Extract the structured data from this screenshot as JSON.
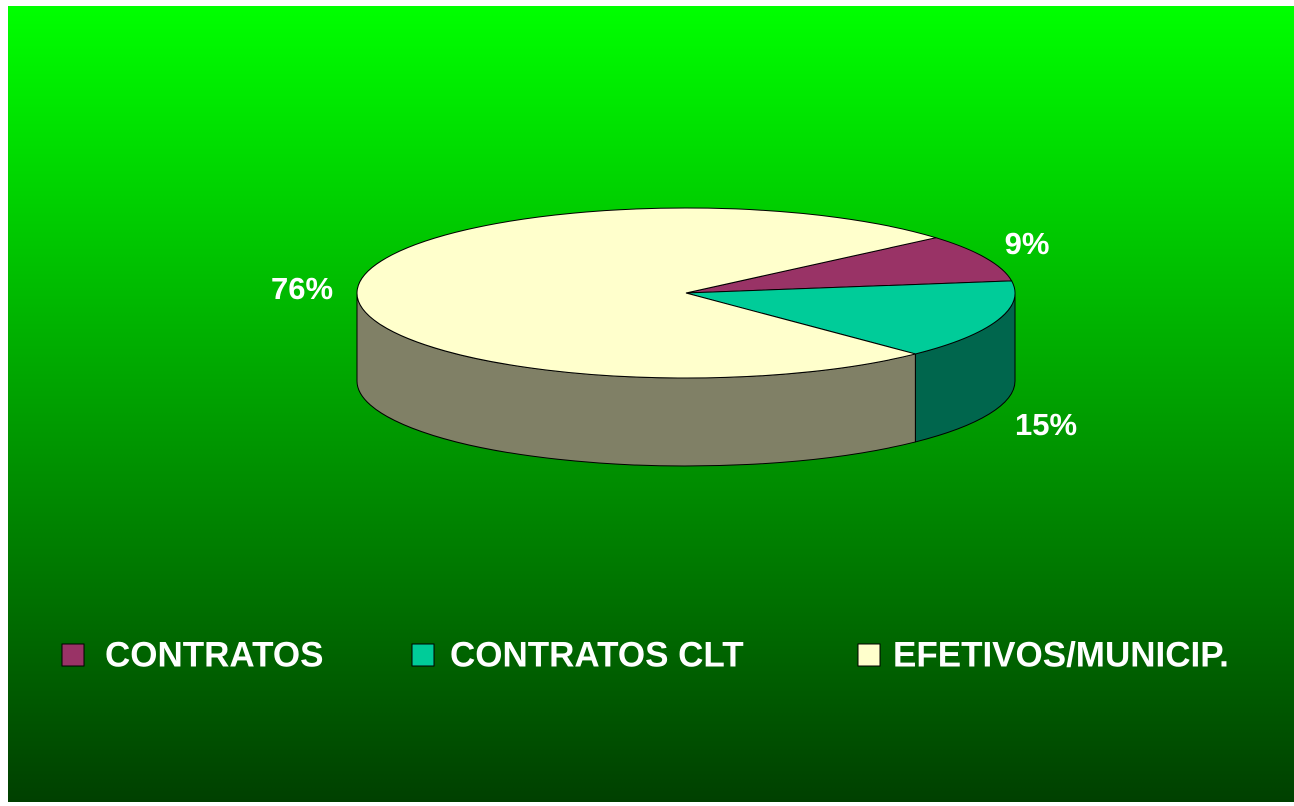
{
  "chart_data": {
    "type": "pie",
    "categories": [
      "CONTRATOS",
      "CONTRATOS CLT",
      "EFETIVOS/MUNICIP."
    ],
    "values": [
      9,
      15,
      76
    ],
    "value_labels": [
      "9%",
      "15%",
      "76%"
    ],
    "colors": [
      "#993366",
      "#00cc99",
      "#ffffcc"
    ],
    "legend": "bottom"
  }
}
